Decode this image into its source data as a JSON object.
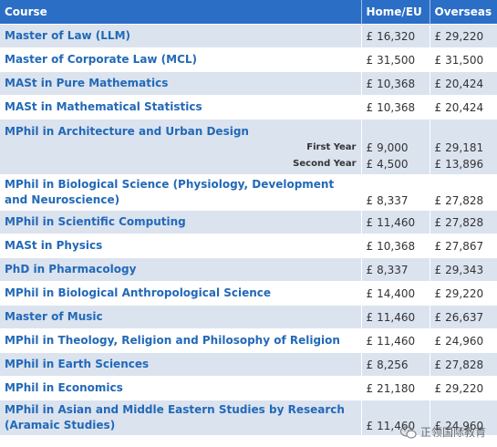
{
  "header": {
    "course": "Course",
    "home_eu": "Home/EU",
    "overseas": "Overseas"
  },
  "currency_symbol": "£",
  "rows": [
    {
      "course": "Master of Law (LLM)",
      "home": "16,320",
      "overseas": "29,220"
    },
    {
      "course": "Master of Corporate Law (MCL)",
      "home": "31,500",
      "overseas": "31,500"
    },
    {
      "course": "MASt in Pure Mathematics",
      "home": "10,368",
      "overseas": "20,424"
    },
    {
      "course": "MASt in Mathematical Statistics",
      "home": "10,368",
      "overseas": "20,424"
    },
    {
      "course": "MPhil in Architecture and Urban Design",
      "sub": [
        {
          "label": "First Year",
          "home": "9,000",
          "overseas": "29,181"
        },
        {
          "label": "Second Year",
          "home": "4,500",
          "overseas": "13,896"
        }
      ]
    },
    {
      "course": "MPhil in Biological Science (Physiology, Development and Neuroscience)",
      "home": "8,337",
      "overseas": "27,828"
    },
    {
      "course": "MPhil in Scientific Computing",
      "home": "11,460",
      "overseas": "27,828"
    },
    {
      "course": "MASt in Physics",
      "home": "10,368",
      "overseas": "27,867"
    },
    {
      "course": "PhD in Pharmacology",
      "home": "8,337",
      "overseas": "29,343"
    },
    {
      "course": "MPhil in Biological Anthropological Science",
      "home": "14,400",
      "overseas": "29,220"
    },
    {
      "course": "Master of Music",
      "home": "11,460",
      "overseas": "26,637"
    },
    {
      "course": "MPhil in Theology, Religion and Philosophy of Religion",
      "home": "11,460",
      "overseas": "24,960"
    },
    {
      "course": "MPhil in Earth Sciences",
      "home": "8,256",
      "overseas": "27,828"
    },
    {
      "course": "MPhil in Economics",
      "home": "21,180",
      "overseas": "29,220"
    },
    {
      "course": "MPhil in Asian and Middle Eastern Studies by Research (Aramaic Studies)",
      "home": "11,460",
      "overseas": "24,960"
    }
  ],
  "watermark": {
    "text": "正领国际教育",
    "icon": "wechat-icon"
  }
}
